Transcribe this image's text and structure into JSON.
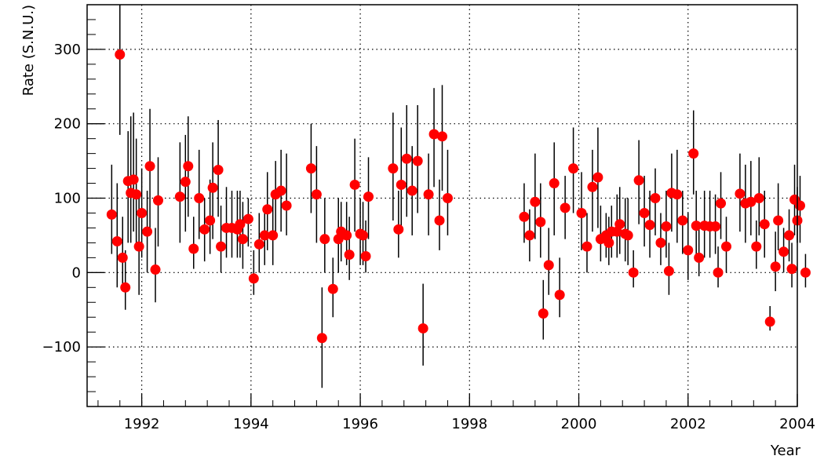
{
  "chart_data": {
    "type": "scatter",
    "title": "",
    "xlabel": "Year",
    "ylabel": "Rate (S.N.U.)",
    "xlim": [
      1991.0,
      2004.0
    ],
    "ylim": [
      -180,
      360
    ],
    "grid": true,
    "error_bars": true,
    "x_ticks": [
      1992,
      1994,
      1996,
      1998,
      2000,
      2002,
      2004
    ],
    "x_tick_labels": [
      "1992",
      "1994",
      "1996",
      "1998",
      "2000",
      "2002",
      "2004"
    ],
    "y_ticks": [
      -100,
      0,
      100,
      200,
      300
    ],
    "y_tick_labels": [
      "−100",
      "0",
      "100",
      "200",
      "300"
    ],
    "colors": {
      "marker": "#ff0000",
      "error_bar": "#000000",
      "grid": "#000000",
      "axis": "#000000"
    },
    "points": [
      {
        "x": 1991.45,
        "y": 78,
        "lo": 25,
        "hi": 145
      },
      {
        "x": 1991.55,
        "y": 42,
        "lo": -20,
        "hi": 120
      },
      {
        "x": 1991.6,
        "y": 293,
        "lo": 185,
        "hi": 360
      },
      {
        "x": 1991.65,
        "y": 20,
        "lo": -20,
        "hi": 75
      },
      {
        "x": 1991.7,
        "y": -20,
        "lo": -50,
        "hi": 30
      },
      {
        "x": 1991.75,
        "y": 123,
        "lo": 40,
        "hi": 190
      },
      {
        "x": 1991.8,
        "y": 107,
        "lo": 40,
        "hi": 210
      },
      {
        "x": 1991.85,
        "y": 125,
        "lo": 55,
        "hi": 215
      },
      {
        "x": 1991.9,
        "y": 105,
        "lo": 40,
        "hi": 180
      },
      {
        "x": 1991.95,
        "y": 35,
        "lo": -30,
        "hi": 100
      },
      {
        "x": 1992.0,
        "y": 80,
        "lo": 20,
        "hi": 140
      },
      {
        "x": 1992.1,
        "y": 55,
        "lo": 0,
        "hi": 110
      },
      {
        "x": 1992.15,
        "y": 143,
        "lo": 60,
        "hi": 220
      },
      {
        "x": 1992.25,
        "y": 4,
        "lo": -40,
        "hi": 60
      },
      {
        "x": 1992.3,
        "y": 97,
        "lo": 35,
        "hi": 155
      },
      {
        "x": 1992.7,
        "y": 102,
        "lo": 40,
        "hi": 175
      },
      {
        "x": 1992.8,
        "y": 122,
        "lo": 55,
        "hi": 185
      },
      {
        "x": 1992.85,
        "y": 143,
        "lo": 75,
        "hi": 210
      },
      {
        "x": 1992.95,
        "y": 32,
        "lo": 5,
        "hi": 75
      },
      {
        "x": 1993.05,
        "y": 100,
        "lo": 45,
        "hi": 165
      },
      {
        "x": 1993.15,
        "y": 58,
        "lo": 15,
        "hi": 100
      },
      {
        "x": 1993.25,
        "y": 70,
        "lo": 25,
        "hi": 125
      },
      {
        "x": 1993.3,
        "y": 114,
        "lo": 45,
        "hi": 175
      },
      {
        "x": 1993.4,
        "y": 138,
        "lo": 75,
        "hi": 205
      },
      {
        "x": 1993.45,
        "y": 35,
        "lo": 0,
        "hi": 90
      },
      {
        "x": 1993.55,
        "y": 60,
        "lo": 20,
        "hi": 115
      },
      {
        "x": 1993.65,
        "y": 60,
        "lo": 20,
        "hi": 110
      },
      {
        "x": 1993.75,
        "y": 58,
        "lo": 20,
        "hi": 110
      },
      {
        "x": 1993.8,
        "y": 65,
        "lo": 20,
        "hi": 110
      },
      {
        "x": 1993.85,
        "y": 45,
        "lo": 5,
        "hi": 95
      },
      {
        "x": 1993.95,
        "y": 72,
        "lo": 35,
        "hi": 100
      },
      {
        "x": 1994.05,
        "y": -8,
        "lo": -30,
        "hi": 30
      },
      {
        "x": 1994.15,
        "y": 38,
        "lo": 0,
        "hi": 80
      },
      {
        "x": 1994.25,
        "y": 50,
        "lo": 10,
        "hi": 90
      },
      {
        "x": 1994.3,
        "y": 85,
        "lo": 30,
        "hi": 135
      },
      {
        "x": 1994.4,
        "y": 50,
        "lo": 10,
        "hi": 100
      },
      {
        "x": 1994.45,
        "y": 105,
        "lo": 50,
        "hi": 150
      },
      {
        "x": 1994.55,
        "y": 110,
        "lo": 55,
        "hi": 165
      },
      {
        "x": 1994.65,
        "y": 90,
        "lo": 50,
        "hi": 160
      },
      {
        "x": 1995.1,
        "y": 140,
        "lo": 80,
        "hi": 200
      },
      {
        "x": 1995.2,
        "y": 105,
        "lo": 40,
        "hi": 170
      },
      {
        "x": 1995.3,
        "y": -88,
        "lo": -155,
        "hi": -20
      },
      {
        "x": 1995.35,
        "y": 45,
        "lo": 0,
        "hi": 100
      },
      {
        "x": 1995.5,
        "y": -22,
        "lo": -60,
        "hi": 20
      },
      {
        "x": 1995.6,
        "y": 45,
        "lo": 0,
        "hi": 100
      },
      {
        "x": 1995.65,
        "y": 55,
        "lo": 15,
        "hi": 95
      },
      {
        "x": 1995.75,
        "y": 50,
        "lo": 10,
        "hi": 95
      },
      {
        "x": 1995.8,
        "y": 24,
        "lo": -10,
        "hi": 75
      },
      {
        "x": 1995.9,
        "y": 118,
        "lo": 55,
        "hi": 180
      },
      {
        "x": 1996.0,
        "y": 52,
        "lo": 10,
        "hi": 100
      },
      {
        "x": 1996.05,
        "y": 50,
        "lo": 10,
        "hi": 95
      },
      {
        "x": 1996.1,
        "y": 22,
        "lo": 0,
        "hi": 70
      },
      {
        "x": 1996.15,
        "y": 102,
        "lo": 45,
        "hi": 155
      },
      {
        "x": 1996.6,
        "y": 140,
        "lo": 70,
        "hi": 215
      },
      {
        "x": 1996.7,
        "y": 58,
        "lo": 20,
        "hi": 110
      },
      {
        "x": 1996.75,
        "y": 118,
        "lo": 60,
        "hi": 195
      },
      {
        "x": 1996.85,
        "y": 153,
        "lo": 75,
        "hi": 225
      },
      {
        "x": 1996.95,
        "y": 110,
        "lo": 50,
        "hi": 170
      },
      {
        "x": 1997.05,
        "y": 150,
        "lo": 80,
        "hi": 225
      },
      {
        "x": 1997.15,
        "y": -75,
        "lo": -125,
        "hi": -15
      },
      {
        "x": 1997.25,
        "y": 105,
        "lo": 50,
        "hi": 160
      },
      {
        "x": 1997.35,
        "y": 186,
        "lo": 115,
        "hi": 248
      },
      {
        "x": 1997.45,
        "y": 70,
        "lo": 30,
        "hi": 125
      },
      {
        "x": 1997.5,
        "y": 183,
        "lo": 110,
        "hi": 252
      },
      {
        "x": 1997.6,
        "y": 100,
        "lo": 50,
        "hi": 165
      },
      {
        "x": 1999.0,
        "y": 75,
        "lo": 40,
        "hi": 120
      },
      {
        "x": 1999.1,
        "y": 50,
        "lo": 15,
        "hi": 85
      },
      {
        "x": 1999.2,
        "y": 95,
        "lo": 45,
        "hi": 160
      },
      {
        "x": 1999.3,
        "y": 68,
        "lo": 20,
        "hi": 120
      },
      {
        "x": 1999.35,
        "y": -55,
        "lo": -90,
        "hi": -10
      },
      {
        "x": 1999.45,
        "y": 10,
        "lo": -30,
        "hi": 60
      },
      {
        "x": 1999.55,
        "y": 120,
        "lo": 50,
        "hi": 175
      },
      {
        "x": 1999.65,
        "y": -30,
        "lo": -60,
        "hi": 20
      },
      {
        "x": 1999.75,
        "y": 87,
        "lo": 45,
        "hi": 130
      },
      {
        "x": 1999.9,
        "y": 140,
        "lo": 80,
        "hi": 195
      },
      {
        "x": 2000.05,
        "y": 80,
        "lo": 30,
        "hi": 135
      },
      {
        "x": 2000.15,
        "y": 35,
        "lo": 0,
        "hi": 80
      },
      {
        "x": 2000.25,
        "y": 115,
        "lo": 55,
        "hi": 165
      },
      {
        "x": 2000.35,
        "y": 128,
        "lo": 60,
        "hi": 195
      },
      {
        "x": 2000.4,
        "y": 45,
        "lo": 15,
        "hi": 90
      },
      {
        "x": 2000.5,
        "y": 50,
        "lo": 20,
        "hi": 80
      },
      {
        "x": 2000.55,
        "y": 40,
        "lo": 10,
        "hi": 75
      },
      {
        "x": 2000.6,
        "y": 55,
        "lo": 20,
        "hi": 90
      },
      {
        "x": 2000.7,
        "y": 55,
        "lo": 20,
        "hi": 105
      },
      {
        "x": 2000.75,
        "y": 65,
        "lo": 25,
        "hi": 115
      },
      {
        "x": 2000.85,
        "y": 52,
        "lo": 15,
        "hi": 100
      },
      {
        "x": 2000.9,
        "y": 50,
        "lo": 10,
        "hi": 100
      },
      {
        "x": 2001.0,
        "y": 0,
        "lo": -20,
        "hi": 30
      },
      {
        "x": 2001.1,
        "y": 124,
        "lo": 65,
        "hi": 178
      },
      {
        "x": 2001.2,
        "y": 80,
        "lo": 35,
        "hi": 130
      },
      {
        "x": 2001.3,
        "y": 64,
        "lo": 20,
        "hi": 110
      },
      {
        "x": 2001.4,
        "y": 100,
        "lo": 50,
        "hi": 140
      },
      {
        "x": 2001.5,
        "y": 40,
        "lo": 10,
        "hi": 80
      },
      {
        "x": 2001.6,
        "y": 62,
        "lo": 20,
        "hi": 110
      },
      {
        "x": 2001.65,
        "y": 2,
        "lo": -30,
        "hi": 40
      },
      {
        "x": 2001.7,
        "y": 107,
        "lo": 55,
        "hi": 160
      },
      {
        "x": 2001.8,
        "y": 105,
        "lo": 40,
        "hi": 165
      },
      {
        "x": 2001.9,
        "y": 70,
        "lo": 25,
        "hi": 110
      },
      {
        "x": 2002.0,
        "y": 30,
        "lo": -10,
        "hi": 80
      },
      {
        "x": 2002.1,
        "y": 160,
        "lo": 105,
        "hi": 218
      },
      {
        "x": 2002.15,
        "y": 63,
        "lo": 20,
        "hi": 110
      },
      {
        "x": 2002.2,
        "y": 20,
        "lo": -5,
        "hi": 60
      },
      {
        "x": 2002.3,
        "y": 63,
        "lo": 20,
        "hi": 110
      },
      {
        "x": 2002.4,
        "y": 62,
        "lo": 20,
        "hi": 110
      },
      {
        "x": 2002.5,
        "y": 62,
        "lo": 25,
        "hi": 105
      },
      {
        "x": 2002.55,
        "y": 0,
        "lo": -20,
        "hi": 35
      },
      {
        "x": 2002.6,
        "y": 93,
        "lo": 45,
        "hi": 135
      },
      {
        "x": 2002.7,
        "y": 35,
        "lo": 0,
        "hi": 75
      },
      {
        "x": 2002.95,
        "y": 106,
        "lo": 55,
        "hi": 160
      },
      {
        "x": 2003.05,
        "y": 93,
        "lo": 40,
        "hi": 145
      },
      {
        "x": 2003.15,
        "y": 95,
        "lo": 50,
        "hi": 150
      },
      {
        "x": 2003.25,
        "y": 35,
        "lo": 5,
        "hi": 70
      },
      {
        "x": 2003.3,
        "y": 100,
        "lo": 50,
        "hi": 155
      },
      {
        "x": 2003.4,
        "y": 65,
        "lo": 20,
        "hi": 110
      },
      {
        "x": 2003.5,
        "y": -66,
        "lo": -78,
        "hi": -45
      },
      {
        "x": 2003.6,
        "y": 8,
        "lo": -25,
        "hi": 55
      },
      {
        "x": 2003.65,
        "y": 70,
        "lo": 30,
        "hi": 120
      },
      {
        "x": 2003.75,
        "y": 28,
        "lo": 0,
        "hi": 60
      },
      {
        "x": 2003.85,
        "y": 50,
        "lo": 15,
        "hi": 85
      },
      {
        "x": 2003.9,
        "y": 5,
        "lo": -20,
        "hi": 40
      },
      {
        "x": 2003.95,
        "y": 98,
        "lo": 50,
        "hi": 145
      },
      {
        "x": 2004.0,
        "y": 70,
        "lo": 40,
        "hi": 115
      },
      {
        "x": 2004.05,
        "y": 90,
        "lo": 40,
        "hi": 130
      },
      {
        "x": 2004.15,
        "y": 0,
        "lo": -20,
        "hi": 25
      }
    ]
  }
}
